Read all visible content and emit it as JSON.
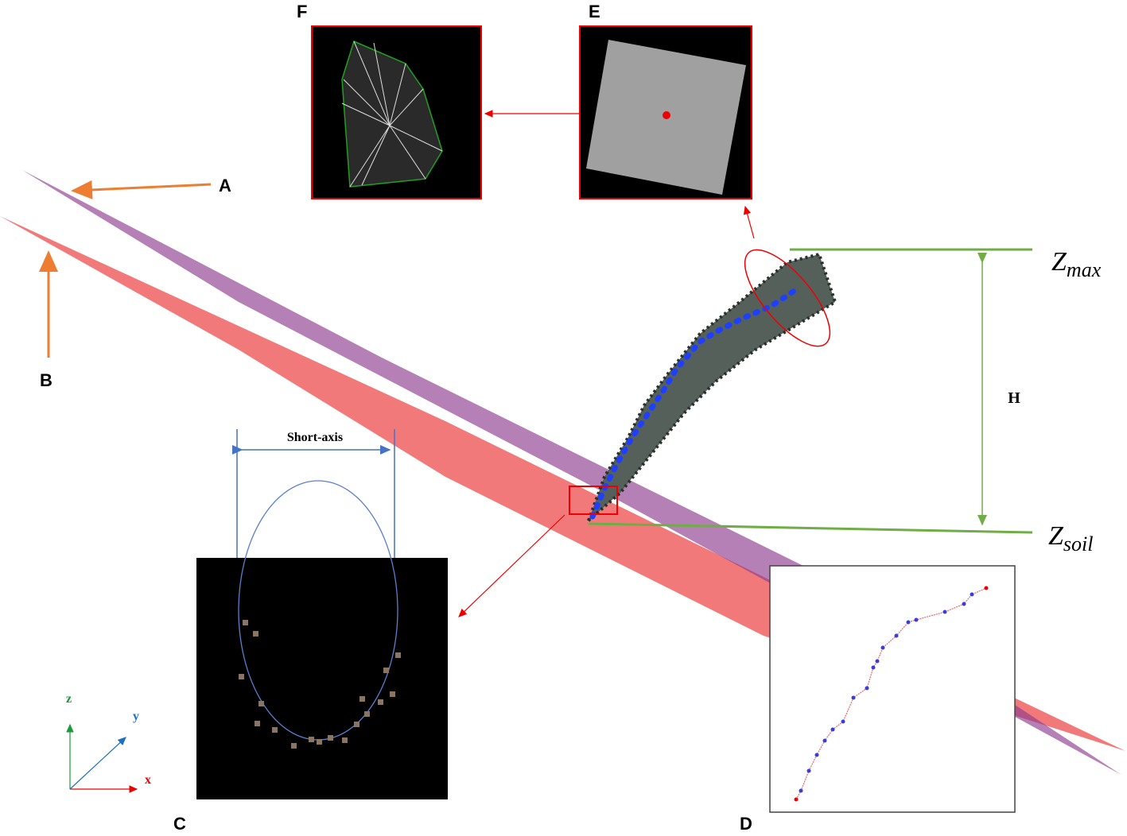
{
  "panels": {
    "a": "A",
    "b": "B",
    "c": "C",
    "d": "D",
    "e": "E",
    "f": "F"
  },
  "short_axis": "Short-axis",
  "height": "H",
  "z_max": {
    "base": "Z",
    "sub": "max"
  },
  "z_soil": {
    "base": "Z",
    "sub": "soil"
  },
  "axes": {
    "x": "x",
    "y": "y",
    "z": "z"
  }
}
